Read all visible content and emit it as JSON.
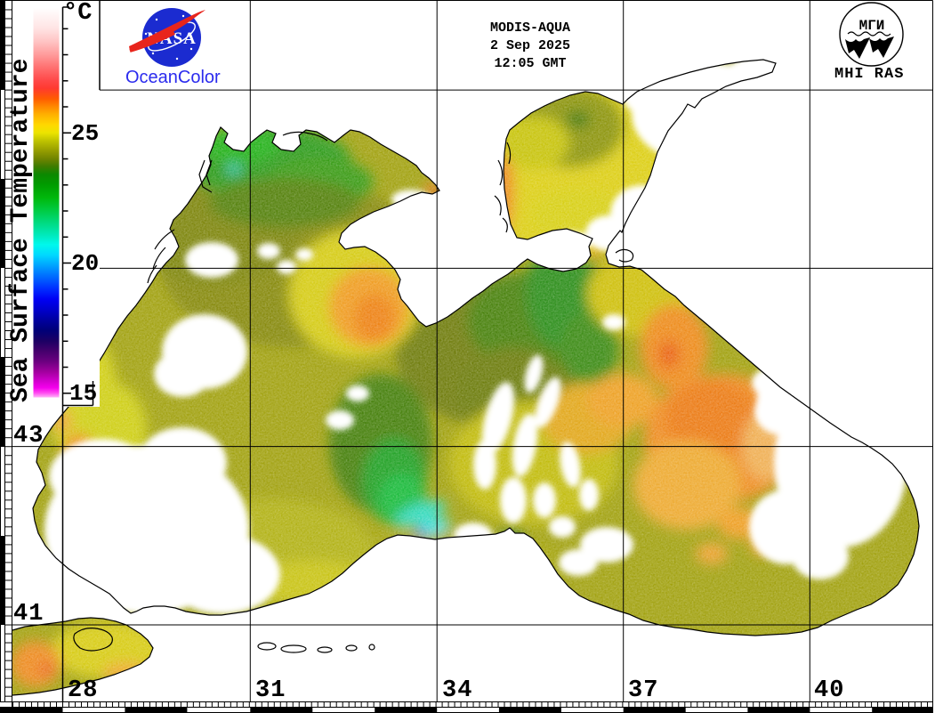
{
  "header": {
    "sensor": "MODIS-AQUA",
    "date": "2 Sep 2025",
    "time": "12:05 GMT"
  },
  "colorbar": {
    "unit": "°C",
    "title": "Sea Surface Temperature",
    "tick_labels": [
      "25",
      "20",
      "15"
    ],
    "stops": [
      {
        "off": 0.0,
        "color": "#ffffff"
      },
      {
        "off": 0.053,
        "color": "#ffe4e4"
      },
      {
        "off": 0.087,
        "color": "#ffc4c4"
      },
      {
        "off": 0.12,
        "color": "#ff9c9c"
      },
      {
        "off": 0.154,
        "color": "#ff7070"
      },
      {
        "off": 0.187,
        "color": "#ff4848"
      },
      {
        "off": 0.207,
        "color": "#ff3a30"
      },
      {
        "off": 0.234,
        "color": "#ff5c00"
      },
      {
        "off": 0.254,
        "color": "#ff8800"
      },
      {
        "off": 0.274,
        "color": "#ffb000"
      },
      {
        "off": 0.301,
        "color": "#ffd800"
      },
      {
        "off": 0.321,
        "color": "#ece400"
      },
      {
        "off": 0.341,
        "color": "#c0c400"
      },
      {
        "off": 0.368,
        "color": "#949c00"
      },
      {
        "off": 0.388,
        "color": "#708400"
      },
      {
        "off": 0.408,
        "color": "#3c7c00"
      },
      {
        "off": 0.428,
        "color": "#0c8800"
      },
      {
        "off": 0.455,
        "color": "#009c00"
      },
      {
        "off": 0.488,
        "color": "#00b80c"
      },
      {
        "off": 0.521,
        "color": "#00cc44"
      },
      {
        "off": 0.555,
        "color": "#00dc86"
      },
      {
        "off": 0.588,
        "color": "#00ecc4"
      },
      {
        "off": 0.608,
        "color": "#00f8ec"
      },
      {
        "off": 0.635,
        "color": "#00d8ff"
      },
      {
        "off": 0.655,
        "color": "#00b0ff"
      },
      {
        "off": 0.675,
        "color": "#0088ff"
      },
      {
        "off": 0.702,
        "color": "#0054ff"
      },
      {
        "off": 0.722,
        "color": "#002cff"
      },
      {
        "off": 0.748,
        "color": "#0000f4"
      },
      {
        "off": 0.775,
        "color": "#0000cc"
      },
      {
        "off": 0.801,
        "color": "#0000a0"
      },
      {
        "off": 0.828,
        "color": "#000078"
      },
      {
        "off": 0.855,
        "color": "#1c0064"
      },
      {
        "off": 0.881,
        "color": "#44006c"
      },
      {
        "off": 0.908,
        "color": "#6c0080"
      },
      {
        "off": 0.935,
        "color": "#a400a0"
      },
      {
        "off": 0.955,
        "color": "#cc00c8"
      },
      {
        "off": 0.975,
        "color": "#f400ec"
      },
      {
        "off": 0.988,
        "color": "#ff48f0"
      },
      {
        "off": 1.0,
        "color": "#ffb4f8"
      }
    ]
  },
  "logos": {
    "nasa_text": "NASA",
    "oceancolor_text": "OceanColor",
    "oceancolor_blue": "#2b2bee",
    "nasa_blue": "#1b2bd0",
    "nasa_red": "#e8251c",
    "mhi_emblem_text": "МГИ",
    "mhi_label": "MHI RAS"
  },
  "axes": {
    "lon_labels": [
      "28",
      "31",
      "34",
      "37",
      "40"
    ],
    "lat_labels": [
      "43",
      "41"
    ]
  },
  "map": {
    "body": "Black Sea and Sea of Azov sea surface temperature field",
    "sea_base_color": "#a2a211",
    "land_color": "#ffffff"
  }
}
